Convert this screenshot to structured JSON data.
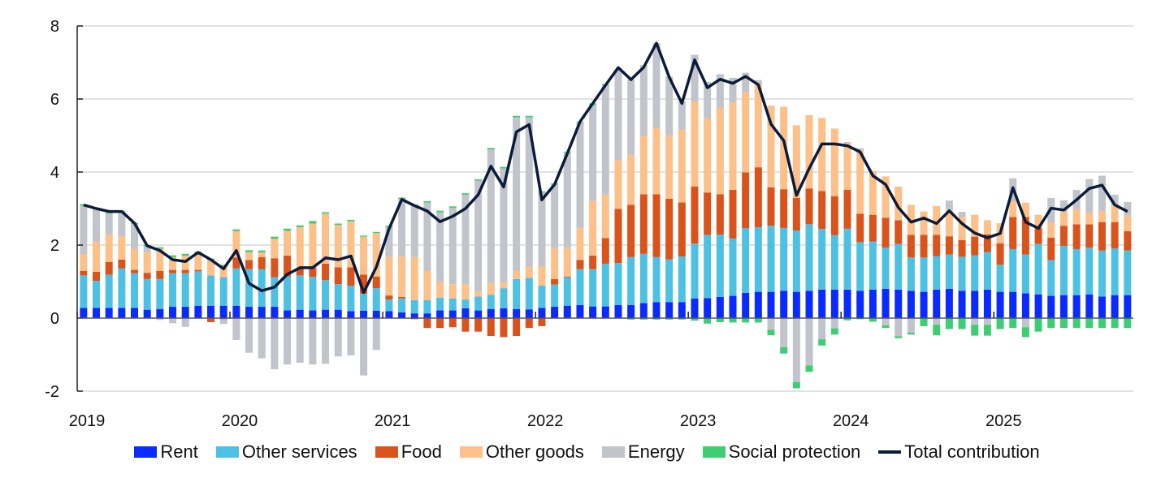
{
  "chart_data": {
    "type": "bar",
    "stacked": true,
    "title": "",
    "xlabel": "",
    "ylabel": "",
    "ylim": [
      -2,
      8
    ],
    "yticks": [
      "-2",
      "0",
      "2",
      "4",
      "6",
      "8"
    ],
    "xtick_labels": [
      "2019",
      "2020",
      "2021",
      "2022",
      "2023",
      "2024",
      "2025"
    ],
    "grid": true,
    "legend_position": "bottom",
    "x": [
      "2019-01",
      "2019-02",
      "2019-03",
      "2019-04",
      "2019-05",
      "2019-06",
      "2019-07",
      "2019-08",
      "2019-09",
      "2019-10",
      "2019-11",
      "2019-12",
      "2020-01",
      "2020-02",
      "2020-03",
      "2020-04",
      "2020-05",
      "2020-06",
      "2020-07",
      "2020-08",
      "2020-09",
      "2020-10",
      "2020-11",
      "2020-12",
      "2021-01",
      "2021-02",
      "2021-03",
      "2021-04",
      "2021-05",
      "2021-06",
      "2021-07",
      "2021-08",
      "2021-09",
      "2021-10",
      "2021-11",
      "2021-12",
      "2022-01",
      "2022-02",
      "2022-03",
      "2022-04",
      "2022-05",
      "2022-06",
      "2022-07",
      "2022-08",
      "2022-09",
      "2022-10",
      "2022-11",
      "2022-12",
      "2023-01",
      "2023-02",
      "2023-03",
      "2023-04",
      "2023-05",
      "2023-06",
      "2023-07",
      "2023-08",
      "2023-09",
      "2023-10",
      "2023-11",
      "2023-12",
      "2024-01",
      "2024-02",
      "2024-03",
      "2024-04",
      "2024-05",
      "2024-06",
      "2024-07",
      "2024-08",
      "2024-09",
      "2024-10",
      "2024-11",
      "2024-12",
      "2025-01",
      "2025-02",
      "2025-03",
      "2025-04",
      "2025-05",
      "2025-06",
      "2025-07",
      "2025-08",
      "2025-09",
      "2025-10",
      "2025-11"
    ],
    "series": [
      {
        "name": "Rent",
        "color": "#0A2BFF",
        "values": [
          0.28,
          0.28,
          0.28,
          0.28,
          0.28,
          0.23,
          0.25,
          0.31,
          0.31,
          0.34,
          0.34,
          0.34,
          0.34,
          0.31,
          0.31,
          0.31,
          0.21,
          0.23,
          0.21,
          0.23,
          0.23,
          0.19,
          0.2,
          0.2,
          0.19,
          0.16,
          0.13,
          0.13,
          0.21,
          0.21,
          0.27,
          0.21,
          0.25,
          0.27,
          0.25,
          0.24,
          0.28,
          0.31,
          0.34,
          0.36,
          0.32,
          0.32,
          0.36,
          0.36,
          0.41,
          0.44,
          0.44,
          0.44,
          0.54,
          0.55,
          0.58,
          0.61,
          0.69,
          0.72,
          0.72,
          0.75,
          0.72,
          0.75,
          0.78,
          0.78,
          0.78,
          0.75,
          0.78,
          0.8,
          0.78,
          0.75,
          0.72,
          0.78,
          0.8,
          0.75,
          0.75,
          0.78,
          0.72,
          0.72,
          0.68,
          0.65,
          0.61,
          0.63,
          0.63,
          0.65,
          0.59,
          0.63,
          0.63
        ]
      },
      {
        "name": "Other services",
        "color": "#4DC1E3",
        "values": [
          0.89,
          0.74,
          0.91,
          1.08,
          0.95,
          0.84,
          0.82,
          0.92,
          0.92,
          0.94,
          0.83,
          0.78,
          1.02,
          1.03,
          1.03,
          0.81,
          0.93,
          0.94,
          0.92,
          0.81,
          0.7,
          0.7,
          0.47,
          0.62,
          0.32,
          0.38,
          0.36,
          0.36,
          0.35,
          0.33,
          0.24,
          0.38,
          0.39,
          0.55,
          0.82,
          0.86,
          0.61,
          0.61,
          0.78,
          0.98,
          1.02,
          1.17,
          1.15,
          1.31,
          1.35,
          1.23,
          1.17,
          1.25,
          1.5,
          1.73,
          1.71,
          1.57,
          1.77,
          1.77,
          1.81,
          1.72,
          1.68,
          1.82,
          1.66,
          1.49,
          1.67,
          1.33,
          1.32,
          1.13,
          1.25,
          0.91,
          0.94,
          0.92,
          0.94,
          0.93,
          0.97,
          1.03,
          0.74,
          1.17,
          1.06,
          1.38,
          0.98,
          1.35,
          1.26,
          1.28,
          1.26,
          1.28,
          1.22
        ]
      },
      {
        "name": "Food",
        "color": "#D9531B",
        "values": [
          0.12,
          0.25,
          0.35,
          0.24,
          0.09,
          0.17,
          0.22,
          0.09,
          0.09,
          0.04,
          -0.11,
          -0.03,
          0.3,
          0.25,
          0.33,
          0.52,
          0.57,
          0.21,
          0.25,
          0.45,
          0.46,
          0.5,
          0.52,
          0.32,
          0.11,
          0.04,
          -0.03,
          -0.27,
          -0.27,
          -0.25,
          -0.37,
          -0.37,
          -0.49,
          -0.52,
          -0.49,
          -0.27,
          -0.22,
          0.15,
          0.02,
          0.25,
          0.37,
          0.7,
          1.48,
          1.43,
          1.63,
          1.72,
          1.66,
          1.48,
          1.56,
          1.16,
          1.1,
          1.33,
          1.53,
          1.64,
          1.05,
          1.06,
          0.89,
          0.98,
          1.04,
          1.07,
          1.06,
          0.78,
          0.73,
          0.82,
          0.65,
          0.62,
          0.62,
          0.58,
          0.5,
          0.46,
          0.51,
          0.48,
          0.59,
          0.88,
          1.03,
          0.45,
          0.61,
          0.55,
          0.68,
          0.64,
          0.78,
          0.72,
          0.53
        ]
      },
      {
        "name": "Other goods",
        "color": "#FCC088",
        "values": [
          0.46,
          0.83,
          0.75,
          0.64,
          0.58,
          0.58,
          0.61,
          0.35,
          0.39,
          0.39,
          0.41,
          0.31,
          0.72,
          0.22,
          0.13,
          0.53,
          0.68,
          1.11,
          1.21,
          1.37,
          1.16,
          1.26,
          1.04,
          1.19,
          1.06,
          1.11,
          1.18,
          0.81,
          0.43,
          0.39,
          0.42,
          0.14,
          0.32,
          0.15,
          0.23,
          0.31,
          0.52,
          0.85,
          0.79,
          0.88,
          1.5,
          1.19,
          1.34,
          1.37,
          1.6,
          1.82,
          1.74,
          1.99,
          2.33,
          2.04,
          2.37,
          2.4,
          2.19,
          2.27,
          2.24,
          2.26,
          1.99,
          2.01,
          2.0,
          1.85,
          1.29,
          1.74,
          1.2,
          1.13,
          0.92,
          0.82,
          0.64,
          0.79,
          0.73,
          0.63,
          0.6,
          0.39,
          0.55,
          0.43,
          0.39,
          0.35,
          0.42,
          0.39,
          0.41,
          0.32,
          0.31,
          0.44,
          0.43
        ]
      },
      {
        "name": "Energy",
        "color": "#C1C4CB",
        "values": [
          1.33,
          0.89,
          0.58,
          0.68,
          0.68,
          0.15,
          -0.05,
          -0.14,
          -0.24,
          0.08,
          0.02,
          -0.13,
          -0.6,
          -0.95,
          -1.1,
          -1.4,
          -1.27,
          -1.22,
          -1.27,
          -1.25,
          -1.05,
          -1.02,
          -1.57,
          -0.87,
          0.82,
          1.58,
          1.41,
          1.86,
          1.91,
          2.09,
          2.45,
          3.03,
          3.66,
          3.13,
          4.2,
          4.09,
          2.03,
          1.74,
          2.6,
          2.89,
          2.63,
          3.0,
          2.46,
          2.06,
          1.94,
          2.32,
          1.61,
          0.77,
          1.28,
          0.99,
          0.92,
          0.67,
          0.54,
          0.12,
          -0.32,
          -0.8,
          -1.75,
          -1.3,
          -0.58,
          -0.28,
          0.02,
          0.05,
          0,
          -0.2,
          -0.5,
          -0.4,
          0,
          -0.18,
          0.25,
          0.14,
          -0.18,
          -0.18,
          0,
          0.63,
          -0.25,
          0,
          0.67,
          0.31,
          0.53,
          0.92,
          0.96,
          0.31,
          0.37
        ]
      },
      {
        "name": "Social protection",
        "color": "#3DCE73",
        "values": [
          0.04,
          0.03,
          0.03,
          0.02,
          0.03,
          0.03,
          0.04,
          0.05,
          0.05,
          0.03,
          0.03,
          0.03,
          0.05,
          0.05,
          0.05,
          0.06,
          0.06,
          0.05,
          0.07,
          0.04,
          0.04,
          0.04,
          0.03,
          0.03,
          0.03,
          0.03,
          0.03,
          0.04,
          0.04,
          0.04,
          0.04,
          0.04,
          0.04,
          0.04,
          0.04,
          0.04,
          0.03,
          0.03,
          0.03,
          0.02,
          0.04,
          0.03,
          0.02,
          -0.04,
          -0.04,
          -0.04,
          -0.04,
          -0.04,
          -0.07,
          -0.15,
          -0.11,
          -0.12,
          -0.12,
          -0.12,
          -0.15,
          -0.17,
          -0.17,
          -0.17,
          -0.17,
          -0.17,
          -0.06,
          -0.03,
          -0.1,
          -0.07,
          -0.05,
          -0.05,
          -0.22,
          -0.29,
          -0.3,
          -0.3,
          -0.3,
          -0.3,
          -0.3,
          -0.27,
          -0.27,
          -0.37,
          -0.27,
          -0.27,
          -0.27,
          -0.27,
          -0.27,
          -0.27,
          -0.27
        ]
      }
    ],
    "line": {
      "name": "Total contribution",
      "color": "#0B1C3B",
      "values": [
        3.1,
        3.0,
        2.92,
        2.92,
        2.6,
        1.98,
        1.85,
        1.6,
        1.55,
        1.8,
        1.6,
        1.35,
        1.85,
        0.95,
        0.75,
        0.85,
        1.2,
        1.38,
        1.38,
        1.65,
        1.6,
        1.7,
        0.7,
        1.4,
        2.45,
        3.25,
        3.08,
        2.93,
        2.64,
        2.79,
        3.0,
        3.38,
        4.16,
        3.59,
        5.1,
        5.3,
        3.24,
        3.66,
        4.51,
        5.38,
        5.88,
        6.38,
        6.86,
        6.53,
        6.87,
        7.53,
        6.6,
        5.88,
        7.07,
        6.31,
        6.54,
        6.43,
        6.62,
        6.39,
        5.31,
        4.86,
        3.36,
        4.1,
        4.77,
        4.77,
        4.72,
        4.55,
        3.9,
        3.66,
        3.03,
        2.63,
        2.74,
        2.59,
        2.94,
        2.59,
        2.33,
        2.2,
        2.32,
        3.57,
        2.63,
        2.46,
        3.01,
        2.96,
        3.24,
        3.55,
        3.64,
        3.1,
        2.92
      ]
    }
  }
}
